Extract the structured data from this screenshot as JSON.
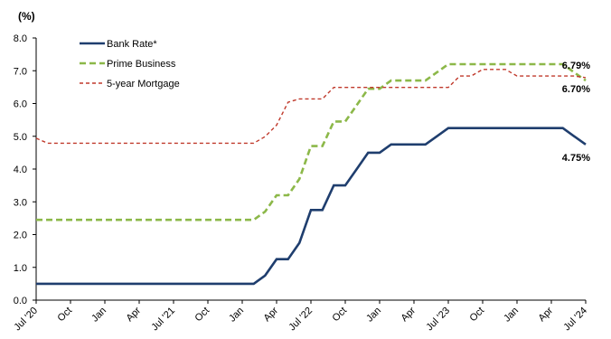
{
  "chart_data": {
    "type": "line",
    "unit_label": "(%)",
    "ylim": [
      0,
      8
    ],
    "yticks": [
      "0.0",
      "1.0",
      "2.0",
      "3.0",
      "4.0",
      "5.0",
      "6.0",
      "7.0",
      "8.0"
    ],
    "xticks": [
      "Jul '20",
      "Oct",
      "Jan",
      "Apr",
      "Jul '21",
      "Oct",
      "Jan",
      "Apr",
      "Jul '22",
      "Oct",
      "Jan",
      "Apr",
      "Jul '23",
      "Oct",
      "Jan",
      "Apr",
      "Jul '24"
    ],
    "x": [
      "2020-07",
      "2020-08",
      "2020-09",
      "2020-10",
      "2020-11",
      "2020-12",
      "2021-01",
      "2021-02",
      "2021-03",
      "2021-04",
      "2021-05",
      "2021-06",
      "2021-07",
      "2021-08",
      "2021-09",
      "2021-10",
      "2021-11",
      "2021-12",
      "2022-01",
      "2022-02",
      "2022-03",
      "2022-04",
      "2022-05",
      "2022-06",
      "2022-07",
      "2022-08",
      "2022-09",
      "2022-10",
      "2022-11",
      "2022-12",
      "2023-01",
      "2023-02",
      "2023-03",
      "2023-04",
      "2023-05",
      "2023-06",
      "2023-07",
      "2023-08",
      "2023-09",
      "2023-10",
      "2023-11",
      "2023-12",
      "2024-01",
      "2024-02",
      "2024-03",
      "2024-04",
      "2024-05",
      "2024-06",
      "2024-07"
    ],
    "grid": false,
    "legend_position": "top-left",
    "series": [
      {
        "name": "Bank Rate*",
        "color": "#1F3E6E",
        "style": "solid",
        "values": [
          0.5,
          0.5,
          0.5,
          0.5,
          0.5,
          0.5,
          0.5,
          0.5,
          0.5,
          0.5,
          0.5,
          0.5,
          0.5,
          0.5,
          0.5,
          0.5,
          0.5,
          0.5,
          0.5,
          0.5,
          0.75,
          1.25,
          1.25,
          1.75,
          2.75,
          2.75,
          3.5,
          3.5,
          4.0,
          4.5,
          4.5,
          4.75,
          4.75,
          4.75,
          4.75,
          5.0,
          5.25,
          5.25,
          5.25,
          5.25,
          5.25,
          5.25,
          5.25,
          5.25,
          5.25,
          5.25,
          5.25,
          5.0,
          4.75
        ],
        "end_label": "4.75%"
      },
      {
        "name": "Prime Business",
        "color": "#8CB849",
        "style": "dashed",
        "values": [
          2.45,
          2.45,
          2.45,
          2.45,
          2.45,
          2.45,
          2.45,
          2.45,
          2.45,
          2.45,
          2.45,
          2.45,
          2.45,
          2.45,
          2.45,
          2.45,
          2.45,
          2.45,
          2.45,
          2.45,
          2.7,
          3.2,
          3.2,
          3.7,
          4.7,
          4.7,
          5.45,
          5.45,
          5.95,
          6.45,
          6.45,
          6.7,
          6.7,
          6.7,
          6.7,
          6.95,
          7.2,
          7.2,
          7.2,
          7.2,
          7.2,
          7.2,
          7.2,
          7.2,
          7.2,
          7.2,
          7.2,
          6.95,
          6.7
        ],
        "end_label": "6.70%"
      },
      {
        "name": "5-year Mortgage",
        "color": "#C0392B",
        "style": "dotted",
        "values": [
          4.94,
          4.79,
          4.79,
          4.79,
          4.79,
          4.79,
          4.79,
          4.79,
          4.79,
          4.79,
          4.79,
          4.79,
          4.79,
          4.79,
          4.79,
          4.79,
          4.79,
          4.79,
          4.79,
          4.79,
          4.99,
          5.34,
          6.04,
          6.14,
          6.14,
          6.14,
          6.49,
          6.49,
          6.49,
          6.49,
          6.49,
          6.49,
          6.49,
          6.49,
          6.49,
          6.49,
          6.49,
          6.84,
          6.84,
          7.04,
          7.04,
          7.04,
          6.84,
          6.84,
          6.84,
          6.84,
          6.84,
          6.84,
          6.79
        ],
        "end_label": "6.79%"
      }
    ]
  }
}
